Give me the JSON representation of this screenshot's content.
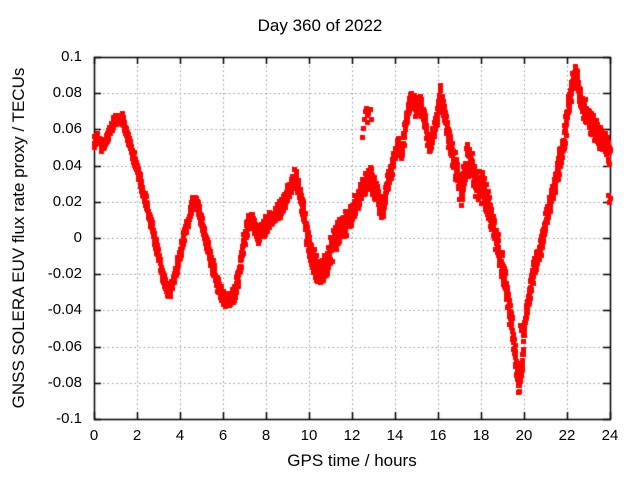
{
  "figure": {
    "background": "#ffffff"
  },
  "chart_data": {
    "type": "scatter",
    "title": "Day 360 of 2022",
    "xlabel": "GPS time / hours",
    "ylabel": "GNSS SOLERA EUV flux rate proxy / TECUs",
    "xlim": [
      0,
      24
    ],
    "ylim": [
      -0.1,
      0.1
    ],
    "x_tick_values": [
      0,
      2,
      4,
      6,
      8,
      10,
      12,
      14,
      16,
      18,
      20,
      22,
      24
    ],
    "x_tick_labels": [
      "0",
      "2",
      "4",
      "6",
      "8",
      "10",
      "12",
      "14",
      "16",
      "18",
      "20",
      "22",
      "24"
    ],
    "y_tick_values": [
      -0.1,
      -0.08,
      -0.06,
      -0.04,
      -0.02,
      0,
      0.02,
      0.04,
      0.06,
      0.08,
      0.1
    ],
    "y_tick_labels": [
      "-0.1",
      "-0.08",
      "-0.06",
      "-0.04",
      "-0.02",
      "0",
      "0.02",
      "0.04",
      "0.06",
      "0.08",
      "0.1"
    ],
    "grid": true,
    "legend": "none",
    "style": {
      "border_color": "#000000",
      "grid_color": "#999999",
      "text_color": "#000000",
      "background": "#ffffff"
    },
    "series": [
      {
        "name": "EUV flux rate proxy",
        "color": "#ff0000",
        "marker": "square",
        "marker_size_px": 5,
        "sample_step_hours": 0.008,
        "trend_points": [
          [
            0.0,
            0.053
          ],
          [
            0.2,
            0.055
          ],
          [
            0.35,
            0.05
          ],
          [
            0.5,
            0.053
          ],
          [
            0.7,
            0.059
          ],
          [
            0.9,
            0.064
          ],
          [
            1.1,
            0.066
          ],
          [
            1.3,
            0.066
          ],
          [
            1.5,
            0.058
          ],
          [
            1.75,
            0.048
          ],
          [
            2.0,
            0.038
          ],
          [
            2.25,
            0.027
          ],
          [
            2.5,
            0.016
          ],
          [
            2.75,
            0.003
          ],
          [
            3.0,
            -0.01
          ],
          [
            3.2,
            -0.022
          ],
          [
            3.4,
            -0.03
          ],
          [
            3.6,
            -0.027
          ],
          [
            3.8,
            -0.018
          ],
          [
            4.0,
            -0.008
          ],
          [
            4.2,
            0.003
          ],
          [
            4.45,
            0.014
          ],
          [
            4.65,
            0.021
          ],
          [
            4.85,
            0.016
          ],
          [
            5.1,
            0.002
          ],
          [
            5.3,
            -0.006
          ],
          [
            5.5,
            -0.015
          ],
          [
            5.75,
            -0.026
          ],
          [
            6.0,
            -0.033
          ],
          [
            6.25,
            -0.035
          ],
          [
            6.5,
            -0.031
          ],
          [
            6.7,
            -0.021
          ],
          [
            6.85,
            -0.01
          ],
          [
            7.0,
            0.002
          ],
          [
            7.25,
            0.011
          ],
          [
            7.6,
            0.002
          ],
          [
            7.9,
            0.006
          ],
          [
            8.2,
            0.01
          ],
          [
            8.5,
            0.014
          ],
          [
            8.8,
            0.019
          ],
          [
            9.05,
            0.027
          ],
          [
            9.3,
            0.034
          ],
          [
            9.5,
            0.027
          ],
          [
            9.7,
            0.016
          ],
          [
            9.85,
            0.004
          ],
          [
            10.0,
            -0.006
          ],
          [
            10.2,
            -0.013
          ],
          [
            10.5,
            -0.019
          ],
          [
            10.8,
            -0.013
          ],
          [
            11.0,
            -0.006
          ],
          [
            11.3,
            0.002
          ],
          [
            11.6,
            0.007
          ],
          [
            11.85,
            0.01
          ],
          [
            12.1,
            0.016
          ],
          [
            12.35,
            0.024
          ],
          [
            12.6,
            0.03
          ],
          [
            12.85,
            0.034
          ],
          [
            13.1,
            0.026
          ],
          [
            13.35,
            0.015
          ],
          [
            13.6,
            0.027
          ],
          [
            13.85,
            0.04
          ],
          [
            14.1,
            0.052
          ],
          [
            14.3,
            0.048
          ],
          [
            14.55,
            0.068
          ],
          [
            14.75,
            0.078
          ],
          [
            14.95,
            0.072
          ],
          [
            15.15,
            0.075
          ],
          [
            15.35,
            0.067
          ],
          [
            15.55,
            0.05
          ],
          [
            15.75,
            0.057
          ],
          [
            15.95,
            0.068
          ],
          [
            16.1,
            0.079
          ],
          [
            16.25,
            0.072
          ],
          [
            16.45,
            0.057
          ],
          [
            16.65,
            0.046
          ],
          [
            16.85,
            0.038
          ],
          [
            17.05,
            0.026
          ],
          [
            17.3,
            0.04
          ],
          [
            17.5,
            0.044
          ],
          [
            17.7,
            0.031
          ],
          [
            17.9,
            0.027
          ],
          [
            18.1,
            0.027
          ],
          [
            18.3,
            0.019
          ],
          [
            18.55,
            0.006
          ],
          [
            18.8,
            -0.006
          ],
          [
            19.0,
            -0.018
          ],
          [
            19.2,
            -0.031
          ],
          [
            19.45,
            -0.052
          ],
          [
            19.6,
            -0.068
          ],
          [
            19.75,
            -0.083
          ],
          [
            19.9,
            -0.069
          ],
          [
            20.05,
            -0.044
          ],
          [
            20.25,
            -0.03
          ],
          [
            20.45,
            -0.017
          ],
          [
            20.65,
            -0.008
          ],
          [
            20.85,
            -0.001
          ],
          [
            21.05,
            0.012
          ],
          [
            21.25,
            0.022
          ],
          [
            21.45,
            0.032
          ],
          [
            21.65,
            0.043
          ],
          [
            21.85,
            0.056
          ],
          [
            22.0,
            0.069
          ],
          [
            22.15,
            0.08
          ],
          [
            22.3,
            0.089
          ],
          [
            22.45,
            0.088
          ],
          [
            22.6,
            0.079
          ],
          [
            22.75,
            0.072
          ],
          [
            22.9,
            0.068
          ],
          [
            23.1,
            0.064
          ],
          [
            23.3,
            0.059
          ],
          [
            23.5,
            0.056
          ],
          [
            23.7,
            0.053
          ],
          [
            23.85,
            0.05
          ],
          [
            24.0,
            0.044
          ]
        ],
        "noise_halfwidth": [
          [
            0,
            0.0035
          ],
          [
            1,
            0.0035
          ],
          [
            2,
            0.004
          ],
          [
            3,
            0.0045
          ],
          [
            4,
            0.0045
          ],
          [
            5,
            0.0045
          ],
          [
            6,
            0.005
          ],
          [
            7,
            0.006
          ],
          [
            8,
            0.006
          ],
          [
            9,
            0.0055
          ],
          [
            9.8,
            0.007
          ],
          [
            10.5,
            0.011
          ],
          [
            11,
            0.012
          ],
          [
            11.5,
            0.008
          ],
          [
            12,
            0.008
          ],
          [
            12.5,
            0.0075
          ],
          [
            13,
            0.0075
          ],
          [
            13.5,
            0.007
          ],
          [
            14,
            0.0065
          ],
          [
            14.7,
            0.006
          ],
          [
            15.5,
            0.0065
          ],
          [
            16,
            0.006
          ],
          [
            16.5,
            0.007
          ],
          [
            17,
            0.0095
          ],
          [
            17.5,
            0.0085
          ],
          [
            18,
            0.0115
          ],
          [
            18.4,
            0.009
          ],
          [
            19,
            0.009
          ],
          [
            19.5,
            0.0075
          ],
          [
            19.8,
            0.006
          ],
          [
            20.3,
            0.0065
          ],
          [
            21,
            0.0075
          ],
          [
            21.6,
            0.0085
          ],
          [
            22,
            0.0085
          ],
          [
            22.4,
            0.0075
          ],
          [
            23,
            0.0075
          ],
          [
            23.5,
            0.0085
          ],
          [
            24,
            0.008
          ]
        ],
        "outlier_points": [
          [
            12.48,
            0.056
          ],
          [
            12.52,
            0.061
          ],
          [
            12.56,
            0.066
          ],
          [
            12.6,
            0.07
          ],
          [
            12.64,
            0.072
          ],
          [
            12.68,
            0.068
          ],
          [
            12.72,
            0.064
          ],
          [
            12.76,
            0.069
          ],
          [
            12.82,
            0.071
          ],
          [
            12.88,
            0.066
          ],
          [
            17.28,
            0.05
          ],
          [
            17.34,
            0.052
          ],
          [
            17.4,
            0.049
          ],
          [
            19.82,
            -0.048
          ],
          [
            19.87,
            -0.051
          ],
          [
            23.93,
            0.024
          ],
          [
            23.97,
            0.02
          ],
          [
            24.0,
            0.022
          ]
        ]
      }
    ]
  }
}
